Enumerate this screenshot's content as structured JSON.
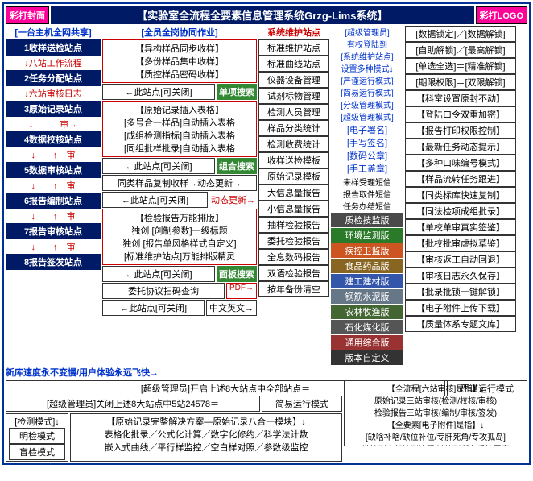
{
  "header": {
    "left": "彩打封面",
    "title": "【实验室全流程全要素信息管理系统Grzg-Lims系统】",
    "right": "彩打LOGO"
  },
  "col_left": {
    "hdr": "[一台主机全网共享]",
    "stations": [
      "1收样送检站点",
      "2任务分配站点",
      "3原始记录站点",
      "4数据校核站点",
      "5数据审核站点",
      "6报告编制站点",
      "7报告审核站点",
      "8报告签发站点"
    ],
    "flows": [
      "↓八站工作流程",
      "↓六站审核日志",
      "↓　　　审→",
      "↓　　↑　审",
      "↓　　↑　审",
      "↓　　↑　审",
      "↓　　↑　审",
      "↓　　↑　审"
    ],
    "bottom": "新库速度永不变慢/用户体验永远飞快→"
  },
  "col_mid1": {
    "hdr": "[全员全岗协同作业]",
    "box1": [
      "【异构样品同步收样】",
      "【多份样品集中收样】",
      "【质控样品密码收样】"
    ],
    "row2": {
      "box": "←此站点[可关闭]",
      "btn": "单项搜索"
    },
    "box3": [
      "【原始记录插入表格】",
      "[多号合一样品]自动插入表格",
      "[成组检测指标]自动插入表格",
      "[同组批样批录]自动插入表格"
    ],
    "row4": {
      "box": "←此站点[可关闭]",
      "btn": "组合搜索"
    },
    "row5": "同类样品复制收样→动态更新→",
    "row6": {
      "box": "←此站点[可关闭]",
      "txt": "动态更新→"
    },
    "box7": [
      "【检验报告万能排版】",
      "独创 [创制参数]一级标题",
      "独创 [报告单风格样式自定义]",
      "[标准维护站点]万能排版精灵"
    ],
    "row8": {
      "box": "←此站点[可关闭]",
      "btn": "面板搜索"
    },
    "row9": {
      "box": "委托协议扫码查询",
      "pdf": "PDF→"
    },
    "row10": {
      "box": "←此站点[可关闭]",
      "box2": "中文英文→"
    }
  },
  "col_mid2": {
    "hdr": "系统维护站点",
    "items": [
      "标准维护站点",
      "标准曲线站点",
      "仪器设备管理",
      "试剂标物管理",
      "检测人员管理",
      "样品分类统计",
      "检测收费统计",
      "收样送检模板",
      "原始记录模板",
      "大信息量报告",
      "小信息量报告",
      "抽样检验报告",
      "委托检验报告",
      "全息数码报告",
      "双语检验报告",
      "按年备份清空"
    ]
  },
  "col_right1": {
    "items": [
      "[超级管理员]",
      "有权登陆到",
      "[系统维护站点]",
      "设置多种模式↓",
      "[严谨运行模式]",
      "[简易运行模式]",
      "[分级管理模式]",
      "[超级管理模式]"
    ],
    "blue": [
      "[电子署名]",
      "[手写签名]",
      "[数码公章]",
      "[手工盖章]"
    ],
    "sms": [
      "来样受理短信",
      "报告取件短信",
      "任务办结短信"
    ],
    "versions": [
      {
        "t": "质检技监版",
        "c": "#4a4a4a"
      },
      {
        "t": "环境监测版",
        "c": "#2a7a2a"
      },
      {
        "t": "疾控卫监版",
        "c": "#cc5522"
      },
      {
        "t": "食品药品版",
        "c": "#886622"
      },
      {
        "t": "建工建材版",
        "c": "#3355aa"
      },
      {
        "t": "钢筋水泥版",
        "c": "#667788"
      },
      {
        "t": "农林牧渔版",
        "c": "#446633"
      },
      {
        "t": "石化煤化版",
        "c": "#555555"
      },
      {
        "t": "通用综合版",
        "c": "#993333"
      },
      {
        "t": "版本自定义",
        "c": "#333333"
      }
    ]
  },
  "col_right2": {
    "items": [
      "[数据锁定]／[数据解锁]",
      "[自助解锁]／[最高解锁]",
      "[单选全选]＝[精准解锁]",
      "[期限权限]＝[双限解锁]",
      "【科室设置原封不动】",
      "【登陆口令双重加密】",
      "【报告打印权限控制】",
      "【最新任务动态提示】",
      "【多种口味编号模式】",
      "【样品流转任务跟进】",
      "【同类标库快速复制】",
      "【同法检项成组批录】",
      "【单校单审真实签鉴】",
      "【批校批审虚拟草鉴】",
      "【审核返工自动回退】",
      "【审核日志永久保存】",
      "【批录批锁一键解锁】",
      "【电子附件上传下载】",
      "【质量体系专题文库】"
    ]
  },
  "footer": {
    "row1": {
      "l": "[超级管理员]开启上述8大站点中全部站点＝",
      "r": "严谨运行模式"
    },
    "row2": {
      "l": "[超级管理员]关闭上述8大站点中5站24578＝",
      "r": "简易运行模式"
    },
    "box_right": [
      "【全流程[六站审核]是指】↓",
      "原始记录三站审核(检测/校核/审核)",
      "检验报告三站审核(编制/审核/签发)",
      "【全要素[电子附件]是指】↓",
      "[缺啥补啥/缺位补位/专肝死角/专攻孤岛]",
      "[链接到全部检测流程/链接到所有质控要素]"
    ],
    "modes": {
      "l": "[检测模式]↓",
      "items": [
        "明检模式",
        "盲检模式"
      ]
    },
    "desc": [
      "【原始记录完整解决方案—原始记录八合一模块】↓",
      "表格化批录／公式化计算／数字化修约／科学法计数",
      "嵌入式曲线／平行样监控／空白样对照／参数级监控"
    ]
  }
}
